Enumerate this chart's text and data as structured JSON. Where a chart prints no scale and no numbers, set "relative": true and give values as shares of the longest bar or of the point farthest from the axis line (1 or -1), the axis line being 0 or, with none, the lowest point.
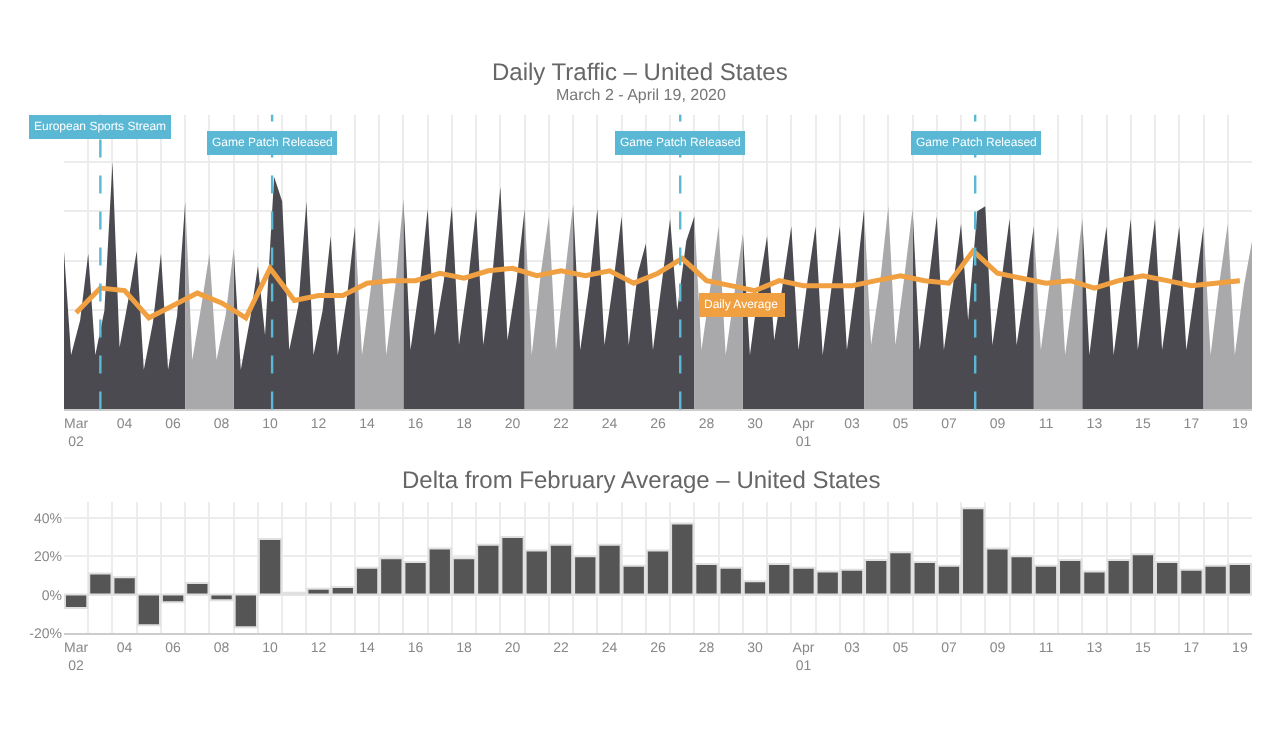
{
  "chart_data": [
    {
      "type": "area",
      "title": "Daily Traffic – United States",
      "subtitle": "March 2 - April 19, 2020",
      "relative": true,
      "grid": true,
      "xlim": [
        "2020-03-02T00:00",
        "2020-04-20T00:00"
      ],
      "xticks": [
        {
          "value": "2020-03-02T12:00",
          "label": "Mar\n02"
        },
        {
          "value": "2020-03-04T12:00",
          "label": "04"
        },
        {
          "value": "2020-03-06T12:00",
          "label": "06"
        },
        {
          "value": "2020-03-08T12:00",
          "label": "08"
        },
        {
          "value": "2020-03-10T12:00",
          "label": "10"
        },
        {
          "value": "2020-03-12T12:00",
          "label": "12"
        },
        {
          "value": "2020-03-14T12:00",
          "label": "14"
        },
        {
          "value": "2020-03-16T12:00",
          "label": "16"
        },
        {
          "value": "2020-03-18T12:00",
          "label": "18"
        },
        {
          "value": "2020-03-20T12:00",
          "label": "20"
        },
        {
          "value": "2020-03-22T12:00",
          "label": "22"
        },
        {
          "value": "2020-03-24T12:00",
          "label": "24"
        },
        {
          "value": "2020-03-26T12:00",
          "label": "26"
        },
        {
          "value": "2020-03-28T12:00",
          "label": "28"
        },
        {
          "value": "2020-03-30T12:00",
          "label": "30"
        },
        {
          "value": "2020-04-01T12:00",
          "label": "Apr\n01"
        },
        {
          "value": "2020-04-03T12:00",
          "label": "03"
        },
        {
          "value": "2020-04-05T12:00",
          "label": "05"
        },
        {
          "value": "2020-04-07T12:00",
          "label": "07"
        },
        {
          "value": "2020-04-09T12:00",
          "label": "09"
        },
        {
          "value": "2020-04-11T12:00",
          "label": "11"
        },
        {
          "value": "2020-04-13T12:00",
          "label": "13"
        },
        {
          "value": "2020-04-15T12:00",
          "label": "15"
        },
        {
          "value": "2020-04-17T12:00",
          "label": "17"
        },
        {
          "value": "2020-04-19T12:00",
          "label": "19"
        }
      ],
      "series": [
        {
          "type": "area",
          "color": "#4a4a50",
          "x": [
            "2020-03-02T00:00",
            "2020-03-02T07:00",
            "2020-03-02T16:00",
            "2020-03-03T00:00",
            "2020-03-03T07:00",
            "2020-03-03T16:00",
            "2020-03-04T00:00",
            "2020-03-04T07:00",
            "2020-03-04T16:00",
            "2020-03-05T00:00",
            "2020-03-05T07:00",
            "2020-03-05T16:00",
            "2020-03-06T00:00",
            "2020-03-06T07:00",
            "2020-03-06T16:00",
            "2020-03-07T00:00",
            "2020-03-07T12:00",
            "2020-03-09T00:00",
            "2020-03-09T07:00",
            "2020-03-09T16:00",
            "2020-03-10T00:00",
            "2020-03-10T07:00",
            "2020-03-10T16:00",
            "2020-03-11T00:00",
            "2020-03-11T07:00",
            "2020-03-11T16:00",
            "2020-03-12T00:00",
            "2020-03-12T07:00",
            "2020-03-12T16:00",
            "2020-03-13T00:00",
            "2020-03-13T07:00",
            "2020-03-13T16:00",
            "2020-03-14T00:00",
            "2020-03-14T12:00",
            "2020-03-16T00:00",
            "2020-03-16T07:00",
            "2020-03-16T16:00",
            "2020-03-17T00:00",
            "2020-03-17T07:00",
            "2020-03-17T16:00",
            "2020-03-18T00:00",
            "2020-03-18T07:00",
            "2020-03-18T16:00",
            "2020-03-19T00:00",
            "2020-03-19T07:00",
            "2020-03-19T16:00",
            "2020-03-20T00:00",
            "2020-03-20T07:00",
            "2020-03-20T16:00",
            "2020-03-21T00:00",
            "2020-03-21T12:00",
            "2020-03-23T00:00",
            "2020-03-23T07:00",
            "2020-03-23T16:00",
            "2020-03-24T00:00",
            "2020-03-24T07:00",
            "2020-03-24T16:00",
            "2020-03-25T00:00",
            "2020-03-25T07:00",
            "2020-03-25T16:00",
            "2020-03-26T00:00",
            "2020-03-26T07:00",
            "2020-03-26T16:00",
            "2020-03-27T00:00",
            "2020-03-27T07:00",
            "2020-03-27T16:00",
            "2020-03-28T00:00",
            "2020-03-28T12:00",
            "2020-03-30T00:00",
            "2020-03-30T07:00",
            "2020-03-30T16:00",
            "2020-03-31T00:00",
            "2020-03-31T07:00",
            "2020-03-31T16:00",
            "2020-04-01T00:00",
            "2020-04-01T07:00",
            "2020-04-01T16:00",
            "2020-04-02T00:00",
            "2020-04-02T07:00",
            "2020-04-02T16:00",
            "2020-04-03T00:00",
            "2020-04-03T07:00",
            "2020-04-03T16:00",
            "2020-04-04T00:00",
            "2020-04-04T12:00",
            "2020-04-06T00:00",
            "2020-04-06T07:00",
            "2020-04-06T16:00",
            "2020-04-07T00:00",
            "2020-04-07T07:00",
            "2020-04-07T16:00",
            "2020-04-08T00:00",
            "2020-04-08T07:00",
            "2020-04-08T16:00",
            "2020-04-09T00:00",
            "2020-04-09T07:00",
            "2020-04-09T16:00",
            "2020-04-10T00:00",
            "2020-04-10T07:00",
            "2020-04-10T16:00",
            "2020-04-11T00:00",
            "2020-04-11T12:00",
            "2020-04-13T00:00",
            "2020-04-13T07:00",
            "2020-04-13T16:00",
            "2020-04-14T00:00",
            "2020-04-14T07:00",
            "2020-04-14T16:00",
            "2020-04-15T00:00",
            "2020-04-15T07:00",
            "2020-04-15T16:00",
            "2020-04-16T00:00",
            "2020-04-16T07:00",
            "2020-04-16T16:00",
            "2020-04-17T00:00",
            "2020-04-17T07:00",
            "2020-04-17T16:00",
            "2020-04-18T00:00"
          ],
          "values": [
            0.64,
            0.22,
            0.36,
            0.63,
            0.22,
            0.4,
            1.0,
            0.25,
            0.45,
            0.64,
            0.16,
            0.35,
            0.63,
            0.16,
            0.38,
            0.84,
            null,
            0.65,
            0.16,
            0.36,
            0.58,
            0.3,
            0.94,
            0.84,
            0.24,
            0.42,
            0.84,
            0.22,
            0.4,
            0.7,
            0.22,
            0.45,
            0.74,
            null,
            0.85,
            0.24,
            0.5,
            0.81,
            0.3,
            0.52,
            0.82,
            0.26,
            0.52,
            0.81,
            0.26,
            0.54,
            0.9,
            0.28,
            0.52,
            0.81,
            null,
            0.83,
            0.24,
            0.5,
            0.81,
            0.26,
            0.52,
            0.78,
            0.26,
            0.55,
            0.67,
            0.24,
            0.52,
            0.77,
            0.4,
            0.68,
            0.78,
            null,
            0.71,
            0.22,
            0.5,
            0.7,
            0.28,
            0.52,
            0.74,
            0.24,
            0.52,
            0.74,
            0.22,
            0.5,
            0.74,
            0.24,
            0.52,
            0.81,
            null,
            0.81,
            0.24,
            0.52,
            0.78,
            0.24,
            0.5,
            0.75,
            0.36,
            0.8,
            0.82,
            0.26,
            0.52,
            0.77,
            0.26,
            0.5,
            0.74,
            null,
            0.77,
            0.22,
            0.52,
            0.74,
            0.22,
            0.5,
            0.77,
            0.24,
            0.52,
            0.77,
            0.24,
            0.5,
            0.74,
            0.24,
            0.5,
            0.74
          ]
        },
        {
          "type": "area",
          "color": "#a9a9ab",
          "x": [
            "2020-03-07T00:00",
            "2020-03-07T07:00",
            "2020-03-07T16:00",
            "2020-03-08T00:00",
            "2020-03-08T07:00",
            "2020-03-08T16:00",
            "2020-03-09T00:00",
            "2020-03-09T12:00",
            "2020-03-14T00:00",
            "2020-03-14T07:00",
            "2020-03-14T16:00",
            "2020-03-15T00:00",
            "2020-03-15T07:00",
            "2020-03-15T16:00",
            "2020-03-16T00:00",
            "2020-03-16T12:00",
            "2020-03-21T00:00",
            "2020-03-21T07:00",
            "2020-03-21T16:00",
            "2020-03-22T00:00",
            "2020-03-22T07:00",
            "2020-03-22T16:00",
            "2020-03-23T00:00",
            "2020-03-23T12:00",
            "2020-03-28T00:00",
            "2020-03-28T07:00",
            "2020-03-28T16:00",
            "2020-03-29T00:00",
            "2020-03-29T07:00",
            "2020-03-29T16:00",
            "2020-03-30T00:00",
            "2020-03-30T12:00",
            "2020-04-04T00:00",
            "2020-04-04T07:00",
            "2020-04-04T16:00",
            "2020-04-05T00:00",
            "2020-04-05T07:00",
            "2020-04-05T16:00",
            "2020-04-06T00:00",
            "2020-04-06T12:00",
            "2020-04-11T00:00",
            "2020-04-11T07:00",
            "2020-04-11T16:00",
            "2020-04-12T00:00",
            "2020-04-12T07:00",
            "2020-04-12T16:00",
            "2020-04-13T00:00",
            "2020-04-13T12:00",
            "2020-04-18T00:00",
            "2020-04-18T07:00",
            "2020-04-18T16:00",
            "2020-04-19T00:00",
            "2020-04-19T07:00",
            "2020-04-19T16:00",
            "2020-04-20T00:00"
          ],
          "values": [
            0.84,
            0.2,
            0.42,
            0.63,
            0.2,
            0.38,
            0.65,
            null,
            0.74,
            0.22,
            0.5,
            0.77,
            0.22,
            0.5,
            0.85,
            null,
            0.81,
            0.22,
            0.55,
            0.78,
            0.24,
            0.55,
            0.83,
            null,
            0.78,
            0.24,
            0.5,
            0.74,
            0.22,
            0.48,
            0.71,
            null,
            0.81,
            0.26,
            0.52,
            0.82,
            0.26,
            0.54,
            0.81,
            null,
            0.74,
            0.24,
            0.52,
            0.74,
            0.22,
            0.5,
            0.77,
            null,
            0.74,
            0.22,
            0.52,
            0.75,
            0.22,
            0.5,
            0.68
          ]
        },
        {
          "type": "line",
          "color": "#f0a040",
          "x": [
            "2020-03-02T12:00",
            "2020-03-03T12:00",
            "2020-03-04T12:00",
            "2020-03-05T12:00",
            "2020-03-06T12:00",
            "2020-03-07T12:00",
            "2020-03-08T12:00",
            "2020-03-09T12:00",
            "2020-03-10T12:00",
            "2020-03-11T12:00",
            "2020-03-12T12:00",
            "2020-03-13T12:00",
            "2020-03-14T12:00",
            "2020-03-15T12:00",
            "2020-03-16T12:00",
            "2020-03-17T12:00",
            "2020-03-18T12:00",
            "2020-03-19T12:00",
            "2020-03-20T12:00",
            "2020-03-21T12:00",
            "2020-03-22T12:00",
            "2020-03-23T12:00",
            "2020-03-24T12:00",
            "2020-03-25T12:00",
            "2020-03-26T12:00",
            "2020-03-27T12:00",
            "2020-03-28T12:00",
            "2020-03-29T12:00",
            "2020-03-30T12:00",
            "2020-03-31T12:00",
            "2020-04-01T12:00",
            "2020-04-02T12:00",
            "2020-04-03T12:00",
            "2020-04-04T12:00",
            "2020-04-05T12:00",
            "2020-04-06T12:00",
            "2020-04-07T12:00",
            "2020-04-08T12:00",
            "2020-04-09T12:00",
            "2020-04-10T12:00",
            "2020-04-11T12:00",
            "2020-04-12T12:00",
            "2020-04-13T12:00",
            "2020-04-14T12:00",
            "2020-04-15T12:00",
            "2020-04-16T12:00",
            "2020-04-17T12:00",
            "2020-04-18T12:00",
            "2020-04-19T12:00"
          ],
          "values": [
            0.39,
            0.49,
            0.48,
            0.37,
            0.42,
            0.47,
            0.43,
            0.37,
            0.57,
            0.44,
            0.46,
            0.46,
            0.51,
            0.52,
            0.52,
            0.55,
            0.53,
            0.56,
            0.57,
            0.54,
            0.56,
            0.54,
            0.56,
            0.51,
            0.55,
            0.61,
            0.52,
            0.5,
            0.48,
            0.52,
            0.5,
            0.5,
            0.5,
            0.52,
            0.54,
            0.52,
            0.51,
            0.64,
            0.55,
            0.53,
            0.51,
            0.52,
            0.49,
            0.52,
            0.54,
            0.52,
            0.5,
            0.51,
            0.52
          ]
        }
      ],
      "ref_lines": [
        {
          "axis": "x",
          "value": "2020-03-03T12:00",
          "label": "European Sports Stream",
          "color": "#5bb8d4",
          "line_style": "dashed"
        },
        {
          "axis": "x",
          "value": "2020-03-10T14:00",
          "label": "Game Patch Released",
          "color": "#5bb8d4",
          "line_style": "dashed"
        },
        {
          "axis": "x",
          "value": "2020-03-27T10:00",
          "label": "Game Patch Released",
          "color": "#5bb8d4",
          "line_style": "dashed"
        },
        {
          "axis": "x",
          "value": "2020-04-08T14:00",
          "label": "Game Patch Released",
          "color": "#5bb8d4",
          "line_style": "dashed"
        }
      ],
      "annotations": [
        {
          "text": "Daily Average",
          "x": "2020-03-30T00:00",
          "y": 0.42
        }
      ]
    },
    {
      "type": "bar",
      "title": "Delta from February Average – United States",
      "color": "#555555",
      "grid": true,
      "categories": [
        "Mar\n02",
        null,
        "04",
        null,
        "06",
        null,
        "08",
        null,
        "10",
        null,
        "12",
        null,
        "14",
        null,
        "16",
        null,
        "18",
        null,
        "20",
        null,
        "22",
        null,
        "24",
        null,
        "26",
        null,
        "28",
        null,
        "30",
        null,
        "Apr\n01",
        null,
        "03",
        null,
        "05",
        null,
        "07",
        null,
        "09",
        null,
        "11",
        null,
        "13",
        null,
        "15",
        null,
        "17",
        null,
        "19"
      ],
      "values": [
        -7,
        11,
        9,
        -16,
        -4,
        6,
        -3,
        -17,
        29,
        1,
        3,
        4,
        14,
        19,
        17,
        24,
        19,
        26,
        30,
        23,
        26,
        20,
        26,
        15,
        23,
        37,
        16,
        14,
        7,
        16,
        14,
        12,
        13,
        18,
        22,
        17,
        15,
        45,
        24,
        20,
        15,
        18,
        12,
        18,
        21,
        17,
        13,
        15,
        16
      ],
      "ylim": [
        -20,
        48
      ],
      "yticks": [
        {
          "value": -20,
          "label": "-20%"
        },
        {
          "value": 0,
          "label": "0%"
        },
        {
          "value": 20,
          "label": "20%"
        },
        {
          "value": 40,
          "label": "40%"
        }
      ]
    }
  ]
}
